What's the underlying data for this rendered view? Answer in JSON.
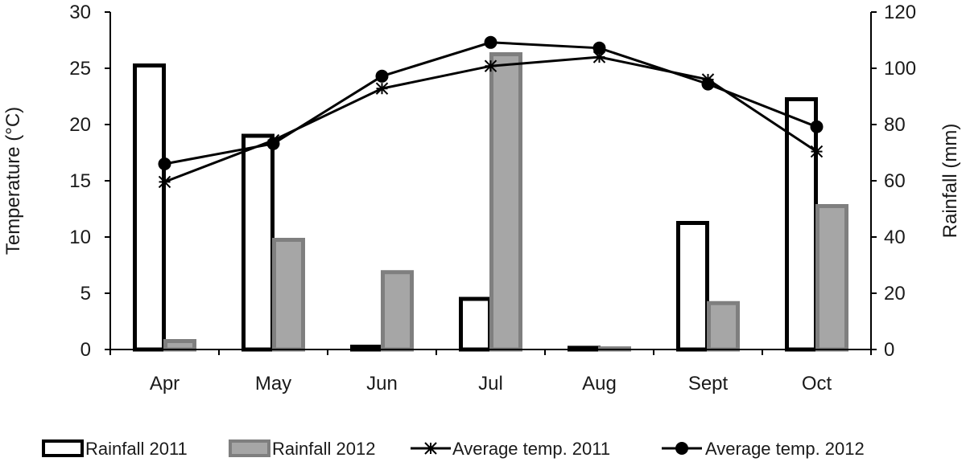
{
  "chart_data": {
    "type": "bar",
    "categories": [
      "Apr",
      "May",
      "Jun",
      "Jul",
      "Aug",
      "Sept",
      "Oct"
    ],
    "y_left": {
      "label": "Temperature (°C)",
      "ylim": [
        0,
        30
      ],
      "ticks": [
        "0",
        "5",
        "10",
        "15",
        "20",
        "25",
        "30"
      ]
    },
    "y_right": {
      "label": "Rainfall (mm)",
      "ylim": [
        0,
        120
      ],
      "ticks": [
        "0",
        "20",
        "40",
        "60",
        "80",
        "100",
        "120"
      ]
    },
    "grid": false,
    "legend_position": "bottom",
    "series": [
      {
        "name": "Rainfall 2011",
        "kind": "bar",
        "axis": "right",
        "values": [
          101,
          76,
          1,
          18,
          0.6,
          45,
          89
        ]
      },
      {
        "name": "Rainfall 2012",
        "kind": "bar",
        "axis": "right",
        "values": [
          3,
          39,
          27.5,
          105,
          0.4,
          16.5,
          51
        ]
      },
      {
        "name": "Average temp. 2011",
        "kind": "line",
        "axis": "left",
        "marker": "asterisk",
        "values": [
          14.9,
          18.6,
          23.2,
          25.2,
          26.0,
          24.0,
          17.6
        ]
      },
      {
        "name": "Average temp. 2012",
        "kind": "line",
        "axis": "left",
        "marker": "circle",
        "values": [
          16.5,
          18.3,
          24.3,
          27.3,
          26.8,
          23.6,
          19.8
        ]
      }
    ],
    "colors": {
      "rain2011_fill": "#ffffff",
      "rain2011_stroke": "#000000",
      "rain2012_fill": "#a6a6a6",
      "rain2012_stroke": "#7f7f7f",
      "line": "#000000",
      "axis": "#000000"
    }
  }
}
